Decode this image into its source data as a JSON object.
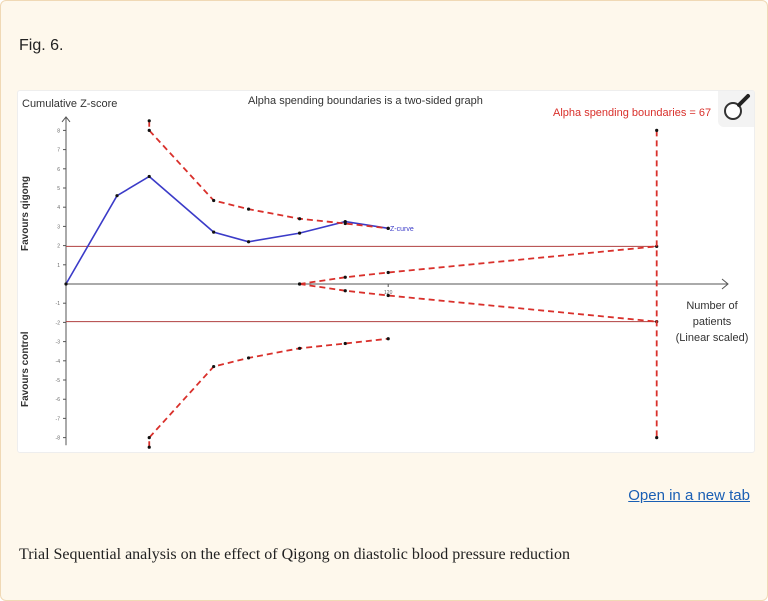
{
  "figure_label": "Fig. 6.",
  "open_link": "Open in a new tab",
  "caption": "Trial Sequential analysis on the effect of Qigong on diastolic blood pressure reduction",
  "icons": {
    "zoom": "magnifier-icon"
  },
  "colors": {
    "z_curve": "#3b3bc8",
    "boundary": "#d9302b",
    "threshold": "#b04040",
    "axis": "#555555"
  },
  "chart_data": {
    "type": "line",
    "title": "Alpha spending boundaries is a two-sided graph",
    "ylabel": "Cumulative Z-score",
    "upper_region_label": "Favours qigong",
    "lower_region_label": "Favours control",
    "xlabel_lines": [
      "Number of",
      "patients",
      "(Linear scaled)"
    ],
    "boundary_label": "Alpha spending boundaries = 67",
    "z_curve_label": "Z-curve",
    "ylim": [
      -8.5,
      8.7
    ],
    "yticks": [
      -8,
      -7,
      -6,
      -5,
      -4,
      -3,
      -2,
      -1,
      1,
      2,
      3,
      4,
      5,
      6,
      7,
      8
    ],
    "xtick_labels": [
      {
        "x": 120,
        "label": "120"
      }
    ],
    "xlim": [
      0,
      240
    ],
    "threshold_z": [
      1.96,
      -1.96
    ],
    "series": [
      {
        "name": "Z-curve",
        "style": "solid",
        "points": [
          [
            0,
            0
          ],
          [
            19,
            4.6
          ],
          [
            31,
            5.6
          ],
          [
            55,
            2.7
          ],
          [
            68,
            2.2
          ],
          [
            87,
            2.65
          ],
          [
            104,
            3.25
          ],
          [
            120,
            2.9
          ]
        ]
      },
      {
        "style": "dashed",
        "points": [
          [
            31,
            8.5
          ],
          [
            31,
            8
          ],
          [
            55,
            4.35
          ],
          [
            68,
            3.9
          ],
          [
            87,
            3.4
          ],
          [
            104,
            3.15
          ],
          [
            120,
            2.9
          ]
        ]
      },
      {
        "style": "dashed",
        "points": [
          [
            31,
            -8.5
          ],
          [
            31,
            -8
          ],
          [
            55,
            -4.3
          ],
          [
            68,
            -3.85
          ],
          [
            87,
            -3.35
          ],
          [
            104,
            -3.1
          ],
          [
            120,
            -2.85
          ]
        ]
      },
      {
        "style": "dashed",
        "points": [
          [
            87,
            0
          ],
          [
            104,
            0.35
          ],
          [
            120,
            0.6
          ],
          [
            220,
            1.96
          ]
        ]
      },
      {
        "style": "dashed",
        "points": [
          [
            87,
            0
          ],
          [
            104,
            -0.35
          ],
          [
            120,
            -0.6
          ],
          [
            220,
            -1.96
          ]
        ]
      },
      {
        "style": "dashed",
        "points": [
          [
            220,
            8
          ],
          [
            220,
            -8
          ]
        ]
      }
    ]
  }
}
